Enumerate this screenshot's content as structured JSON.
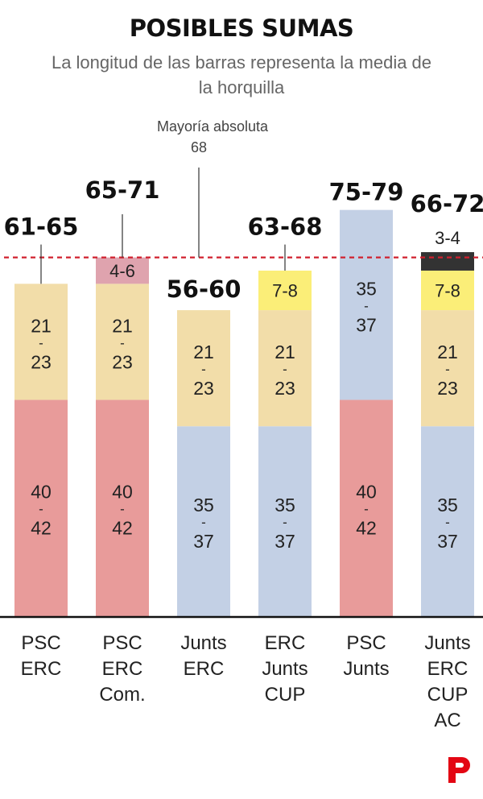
{
  "title": "POSIBLES SUMAS",
  "subtitle": "La longitud de las barras representa la media de la horquilla",
  "logo": "P",
  "colors": {
    "PSC": "#e89b9a",
    "ERC": "#f2dda9",
    "Junts": "#c3d0e5",
    "Comuns": "#dfa3ae",
    "CUP": "#fbee78",
    "AC": "#333333",
    "majority_line": "#d0202e",
    "logo": "#e30613"
  },
  "chart_data": {
    "type": "bar",
    "stacked": true,
    "majority": {
      "label": "Mayoría absoluta",
      "value": 68
    },
    "ylim": [
      0,
      80
    ],
    "bars": [
      {
        "label_lines": [
          "PSC",
          "ERC"
        ],
        "range_label": "61-65",
        "segments": [
          {
            "party": "PSC",
            "value": 41,
            "label_lines": [
              "40",
              "-",
              "42"
            ]
          },
          {
            "party": "ERC",
            "value": 22,
            "label_lines": [
              "21",
              "-",
              "23"
            ]
          }
        ]
      },
      {
        "label_lines": [
          "PSC",
          "ERC",
          "Com."
        ],
        "range_label": "65-71",
        "segments": [
          {
            "party": "PSC",
            "value": 41,
            "label_lines": [
              "40",
              "-",
              "42"
            ]
          },
          {
            "party": "ERC",
            "value": 22,
            "label_lines": [
              "21",
              "-",
              "23"
            ]
          },
          {
            "party": "Comuns",
            "value": 5,
            "label_lines": [
              "4-6"
            ]
          }
        ]
      },
      {
        "label_lines": [
          "Junts",
          "ERC"
        ],
        "range_label": "56-60",
        "segments": [
          {
            "party": "Junts",
            "value": 36,
            "label_lines": [
              "35",
              "-",
              "37"
            ]
          },
          {
            "party": "ERC",
            "value": 22,
            "label_lines": [
              "21",
              "-",
              "23"
            ]
          }
        ]
      },
      {
        "label_lines": [
          "ERC",
          "Junts",
          "CUP"
        ],
        "range_label": "63-68",
        "segments": [
          {
            "party": "Junts",
            "value": 36,
            "label_lines": [
              "35",
              "-",
              "37"
            ]
          },
          {
            "party": "ERC",
            "value": 22,
            "label_lines": [
              "21",
              "-",
              "23"
            ]
          },
          {
            "party": "CUP",
            "value": 7.5,
            "label_lines": [
              "7-8"
            ]
          }
        ]
      },
      {
        "label_lines": [
          "PSC",
          "Junts"
        ],
        "range_label": "75-79",
        "segments": [
          {
            "party": "PSC",
            "value": 41,
            "label_lines": [
              "40",
              "-",
              "42"
            ]
          },
          {
            "party": "Junts",
            "value": 36,
            "label_lines": [
              "35",
              "-",
              "37"
            ]
          }
        ]
      },
      {
        "label_lines": [
          "Junts",
          "ERC",
          "CUP",
          "AC"
        ],
        "range_label": "66-72",
        "segments": [
          {
            "party": "Junts",
            "value": 36,
            "label_lines": [
              "35",
              "-",
              "37"
            ]
          },
          {
            "party": "ERC",
            "value": 22,
            "label_lines": [
              "21",
              "-",
              "23"
            ]
          },
          {
            "party": "CUP",
            "value": 7.5,
            "label_lines": [
              "7-8"
            ]
          },
          {
            "party": "AC",
            "value": 3.5,
            "label_lines": [
              "3-4"
            ],
            "label_outside": true
          }
        ]
      }
    ]
  }
}
